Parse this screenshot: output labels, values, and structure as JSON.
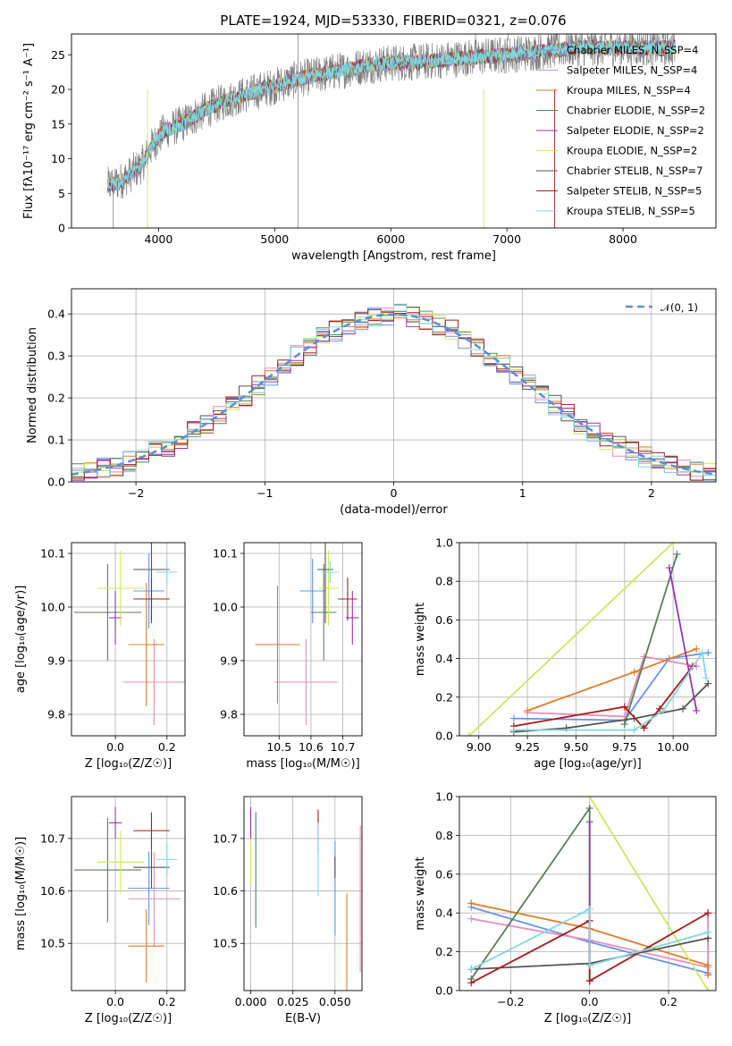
{
  "chart_data": [
    {
      "id": "spectrum",
      "type": "line",
      "title": "PLATE=1924, MJD=53330, FIBERID=0321, z=0.076",
      "xlabel": "wavelength [Angstrom, rest frame]",
      "ylabel": "Flux [fλ10⁻¹⁷ erg cm⁻² s⁻¹ A⁻¹]",
      "xlim": [
        3250,
        8800
      ],
      "ylim": [
        0,
        28
      ],
      "xticks": [
        4000,
        5000,
        6000,
        7000,
        8000
      ],
      "yticks": [
        0,
        5,
        10,
        15,
        20,
        25
      ],
      "legend_position": "right",
      "series": [
        {
          "name": "Chabrier MILES, N_SSP=4",
          "color": "#6495ed"
        },
        {
          "name": "Salpeter MILES, N_SSP=4",
          "color": "#e88dbf"
        },
        {
          "name": "Kroupa MILES, N_SSP=4",
          "color": "#e07b28"
        },
        {
          "name": "Chabrier ELODIE, N_SSP=2",
          "color": "#55805a"
        },
        {
          "name": "Salpeter ELODIE, N_SSP=2",
          "color": "#9b30b8"
        },
        {
          "name": "Kroupa ELODIE, N_SSP=2",
          "color": "#cde85c"
        },
        {
          "name": "Chabrier STELIB, N_SSP=7",
          "color": "#555555"
        },
        {
          "name": "Salpeter STELIB, N_SSP=5",
          "color": "#a81c1c"
        },
        {
          "name": "Kroupa STELIB, N_SSP=5",
          "color": "#7fd8e2"
        }
      ],
      "data_color": "#808080",
      "continuum": [
        [
          3550,
          6
        ],
        [
          3700,
          7
        ],
        [
          3850,
          9
        ],
        [
          3950,
          12
        ],
        [
          4050,
          14
        ],
        [
          4200,
          15
        ],
        [
          4400,
          17
        ],
        [
          4600,
          18.5
        ],
        [
          4800,
          19.5
        ],
        [
          5000,
          20.5
        ],
        [
          5200,
          21.5
        ],
        [
          5500,
          22.5
        ],
        [
          5800,
          23.5
        ],
        [
          6000,
          23.8
        ],
        [
          6300,
          24
        ],
        [
          6600,
          24.5
        ],
        [
          7000,
          25
        ],
        [
          7300,
          25.5
        ],
        [
          7600,
          26
        ],
        [
          8000,
          26
        ],
        [
          8500,
          26
        ]
      ]
    },
    {
      "id": "residuals",
      "type": "bar",
      "xlabel": "(data-model)/error",
      "ylabel": "Normed distribution",
      "xlim": [
        -2.5,
        2.5
      ],
      "ylim": [
        0,
        0.46
      ],
      "xticks": [
        -2,
        -1,
        0,
        1,
        2
      ],
      "yticks": [
        0.0,
        0.1,
        0.2,
        0.3,
        0.4
      ],
      "legend": "𝒩(0, 1)",
      "legend_position": "top-right",
      "grid": true,
      "bin_width": 0.1
    },
    {
      "id": "age-vs-Z",
      "type": "scatter",
      "xlabel": "Z [log₁₀(Z/Z☉)]",
      "ylabel": "age  [log₁₀(age/yr)]",
      "xlim": [
        -0.17,
        0.27
      ],
      "ylim": [
        9.76,
        10.12
      ],
      "xticks": [
        0.0,
        0.2
      ],
      "yticks": [
        9.8,
        9.9,
        10.0,
        10.1
      ],
      "grid": true,
      "points": [
        {
          "color": "#6495ed",
          "x": 0.13,
          "xerr": 0.06,
          "y": 10.03,
          "yerr": 0.07
        },
        {
          "color": "#e88dbf",
          "x": 0.15,
          "xerr": 0.12,
          "y": 9.86,
          "yerr": 0.08
        },
        {
          "color": "#e07b28",
          "x": 0.12,
          "xerr": 0.07,
          "y": 9.93,
          "yerr": 0.115
        },
        {
          "color": "#55805a",
          "x": -0.03,
          "xerr": 0.13,
          "y": 9.99,
          "yerr": 0.09
        },
        {
          "color": "#9b30b8",
          "x": 0.0,
          "xerr": 0.025,
          "y": 9.98,
          "yerr": 0.05
        },
        {
          "color": "#cde85c",
          "x": 0.02,
          "xerr": 0.09,
          "y": 10.035,
          "yerr": 0.07
        },
        {
          "color": "#555555",
          "x": 0.14,
          "xerr": 0.07,
          "y": 10.07,
          "yerr": 0.1
        },
        {
          "color": "#a81c1c",
          "x": 0.14,
          "xerr": 0.07,
          "y": 10.015,
          "yerr": 0.04
        },
        {
          "color": "#7fd8e2",
          "x": 0.2,
          "xerr": 0.04,
          "y": 10.065,
          "yerr": 0.02
        }
      ]
    },
    {
      "id": "age-vs-mass",
      "type": "scatter",
      "xlabel": "mass [log₁₀(M/M☉)]",
      "xlim": [
        10.39,
        10.76
      ],
      "ylim": [
        9.76,
        10.12
      ],
      "xticks": [
        10.5,
        10.6,
        10.7
      ],
      "yticks": [
        9.8,
        9.9,
        10.0,
        10.1
      ],
      "grid": true,
      "points": [
        {
          "color": "#6495ed",
          "x": 10.605,
          "xerr": 0.04,
          "y": 10.03,
          "yerr": 0.06
        },
        {
          "color": "#e88dbf",
          "x": 10.585,
          "xerr": 0.1,
          "y": 9.86,
          "yerr": 0.08
        },
        {
          "color": "#e07b28",
          "x": 10.495,
          "xerr": 0.07,
          "y": 9.93,
          "yerr": 0.11
        },
        {
          "color": "#55805a",
          "x": 10.64,
          "xerr": 0.04,
          "y": 9.99,
          "yerr": 0.09
        },
        {
          "color": "#9b30b8",
          "x": 10.73,
          "xerr": 0.02,
          "y": 9.98,
          "yerr": 0.05
        },
        {
          "color": "#cde85c",
          "x": 10.655,
          "xerr": 0.03,
          "y": 10.035,
          "yerr": 0.07
        },
        {
          "color": "#555555",
          "x": 10.645,
          "xerr": 0.025,
          "y": 10.07,
          "yerr": 0.1
        },
        {
          "color": "#a81c1c",
          "x": 10.715,
          "xerr": 0.03,
          "y": 10.015,
          "yerr": 0.04
        },
        {
          "color": "#7fd8e2",
          "x": 10.66,
          "xerr": 0.025,
          "y": 10.065,
          "yerr": 0.02
        }
      ]
    },
    {
      "id": "mass-weight-vs-age",
      "type": "line",
      "xlabel": "age  [log₁₀(age/yr)]",
      "ylabel": "mass weight",
      "xlim": [
        8.9,
        10.22
      ],
      "ylim": [
        0,
        1
      ],
      "xticks": [
        9.0,
        9.25,
        9.5,
        9.75,
        10.0
      ],
      "yticks": [
        0.0,
        0.2,
        0.4,
        0.6,
        0.8,
        1.0
      ],
      "grid": true,
      "series": [
        {
          "color": "#6495ed",
          "x": [
            9.18,
            9.75,
            9.98,
            10.18
          ],
          "y": [
            0.09,
            0.08,
            0.4,
            0.43
          ]
        },
        {
          "color": "#e88dbf",
          "x": [
            9.25,
            9.75,
            9.85,
            10.12
          ],
          "y": [
            0.12,
            0.1,
            0.41,
            0.36
          ]
        },
        {
          "color": "#e07b28",
          "x": [
            9.25,
            9.8,
            10.12
          ],
          "y": [
            0.13,
            0.33,
            0.45
          ]
        },
        {
          "color": "#55805a",
          "x": [
            9.75,
            10.02
          ],
          "y": [
            0.06,
            0.94
          ]
        },
        {
          "color": "#9b30b8",
          "x": [
            9.98,
            10.12
          ],
          "y": [
            0.87,
            0.13
          ]
        },
        {
          "color": "#cde85c",
          "x": [
            8.95,
            10.0
          ],
          "y": [
            0.0,
            1.0
          ]
        },
        {
          "color": "#555555",
          "x": [
            9.18,
            9.45,
            9.8,
            10.05,
            10.18
          ],
          "y": [
            0.02,
            0.04,
            0.09,
            0.14,
            0.27
          ]
        },
        {
          "color": "#a81c1c",
          "x": [
            9.18,
            9.75,
            9.85,
            9.93,
            10.1
          ],
          "y": [
            0.05,
            0.15,
            0.04,
            0.14,
            0.36
          ]
        },
        {
          "color": "#7fd8e2",
          "x": [
            9.18,
            9.8,
            9.95,
            10.15,
            10.17
          ],
          "y": [
            0.03,
            0.03,
            0.13,
            0.43,
            0.3
          ]
        }
      ]
    },
    {
      "id": "mass-vs-Z",
      "type": "scatter",
      "xlabel": "Z [log₁₀(Z/Z☉)]",
      "ylabel": "mass [log₁₀(M/M☉)]",
      "xlim": [
        -0.17,
        0.27
      ],
      "ylim": [
        10.41,
        10.78
      ],
      "xticks": [
        0.0,
        0.2
      ],
      "yticks": [
        10.5,
        10.6,
        10.7
      ],
      "grid": true,
      "points": [
        {
          "color": "#6495ed",
          "x": 0.13,
          "xerr": 0.08,
          "y": 10.605,
          "yerr": 0.07
        },
        {
          "color": "#e88dbf",
          "x": 0.15,
          "xerr": 0.1,
          "y": 10.585,
          "yerr": 0.09
        },
        {
          "color": "#e07b28",
          "x": 0.12,
          "xerr": 0.07,
          "y": 10.495,
          "yerr": 0.07
        },
        {
          "color": "#55805a",
          "x": -0.03,
          "xerr": 0.13,
          "y": 10.64,
          "yerr": 0.1
        },
        {
          "color": "#9b30b8",
          "x": 0.0,
          "xerr": 0.025,
          "y": 10.73,
          "yerr": 0.03
        },
        {
          "color": "#cde85c",
          "x": 0.02,
          "xerr": 0.09,
          "y": 10.655,
          "yerr": 0.06
        },
        {
          "color": "#555555",
          "x": 0.14,
          "xerr": 0.07,
          "y": 10.645,
          "yerr": 0.04
        },
        {
          "color": "#a81c1c",
          "x": 0.14,
          "xerr": 0.07,
          "y": 10.715,
          "yerr": 0.035
        },
        {
          "color": "#7fd8e2",
          "x": 0.2,
          "xerr": 0.04,
          "y": 10.66,
          "yerr": 0.03
        }
      ]
    },
    {
      "id": "mass-vs-EBV",
      "type": "scatter",
      "xlabel": "E(B-V)",
      "xlim": [
        -0.004,
        0.066
      ],
      "ylim": [
        10.41,
        10.78
      ],
      "xticks": [
        0.0,
        0.025,
        0.05
      ],
      "xtick_labels": [
        "0.000",
        "0.025",
        "0.050"
      ],
      "yticks": [
        10.5,
        10.6,
        10.7
      ],
      "grid": true,
      "points": [
        {
          "color": "#6495ed",
          "x": 0.05,
          "y": 10.605,
          "yerr": 0.09
        },
        {
          "color": "#e88dbf",
          "x": 0.065,
          "y": 10.585,
          "yerr": 0.14
        },
        {
          "color": "#e07b28",
          "x": 0.057,
          "y": 10.495,
          "yerr": 0.1
        },
        {
          "color": "#55805a",
          "x": 0.003,
          "y": 10.64,
          "yerr": 0.11
        },
        {
          "color": "#9b30b8",
          "x": 0.0,
          "y": 10.73,
          "yerr": 0.03
        },
        {
          "color": "#cde85c",
          "x": 0.0,
          "y": 10.655,
          "yerr": 0.04
        },
        {
          "color": "#555555",
          "x": 0.05,
          "y": 10.645,
          "yerr": 0.02
        },
        {
          "color": "#a81c1c",
          "x": 0.04,
          "y": 10.715,
          "yerr": 0.04
        },
        {
          "color": "#7fd8e2",
          "x": 0.04,
          "y": 10.66,
          "yerr": 0.07
        }
      ]
    },
    {
      "id": "mass-weight-vs-Z",
      "type": "line",
      "xlabel": "Z [log₁₀(Z/Z☉)]",
      "ylabel": "mass weight",
      "xlim": [
        -0.33,
        0.32
      ],
      "ylim": [
        0,
        1
      ],
      "xticks": [
        -0.2,
        0.0,
        0.2
      ],
      "xtick_labels": [
        "−0.2",
        "0.0",
        "0.2"
      ],
      "yticks": [
        0.0,
        0.2,
        0.4,
        0.6,
        0.8,
        1.0
      ],
      "grid": true,
      "series": [
        {
          "color": "#6495ed",
          "x": [
            -0.3,
            0.0,
            0.3,
            0.3
          ],
          "y": [
            0.43,
            0.25,
            0.09,
            0.4
          ]
        },
        {
          "color": "#e88dbf",
          "x": [
            -0.3,
            0.0,
            0.3,
            0.3
          ],
          "y": [
            0.37,
            0.26,
            0.12,
            0.4
          ]
        },
        {
          "color": "#e07b28",
          "x": [
            -0.3,
            0.0,
            0.3,
            0.3
          ],
          "y": [
            0.45,
            0.32,
            0.13,
            0.08
          ]
        },
        {
          "color": "#55805a",
          "x": [
            -0.3,
            0.0,
            0.0
          ],
          "y": [
            0.06,
            0.94,
            0.05
          ]
        },
        {
          "color": "#9b30b8",
          "x": [
            0.0,
            0.0
          ],
          "y": [
            0.87,
            0.13
          ]
        },
        {
          "color": "#cde85c",
          "x": [
            0.0,
            0.3
          ],
          "y": [
            1.0,
            0.0
          ]
        },
        {
          "color": "#555555",
          "x": [
            -0.3,
            0.0,
            0.3
          ],
          "y": [
            0.11,
            0.14,
            0.27
          ]
        },
        {
          "color": "#a81c1c",
          "x": [
            -0.3,
            0.0,
            0.0,
            0.3
          ],
          "y": [
            0.04,
            0.36,
            0.05,
            0.4
          ]
        },
        {
          "color": "#7fd8e2",
          "x": [
            -0.3,
            0.0,
            0.0,
            0.3
          ],
          "y": [
            0.11,
            0.42,
            0.13,
            0.3
          ]
        }
      ]
    }
  ]
}
